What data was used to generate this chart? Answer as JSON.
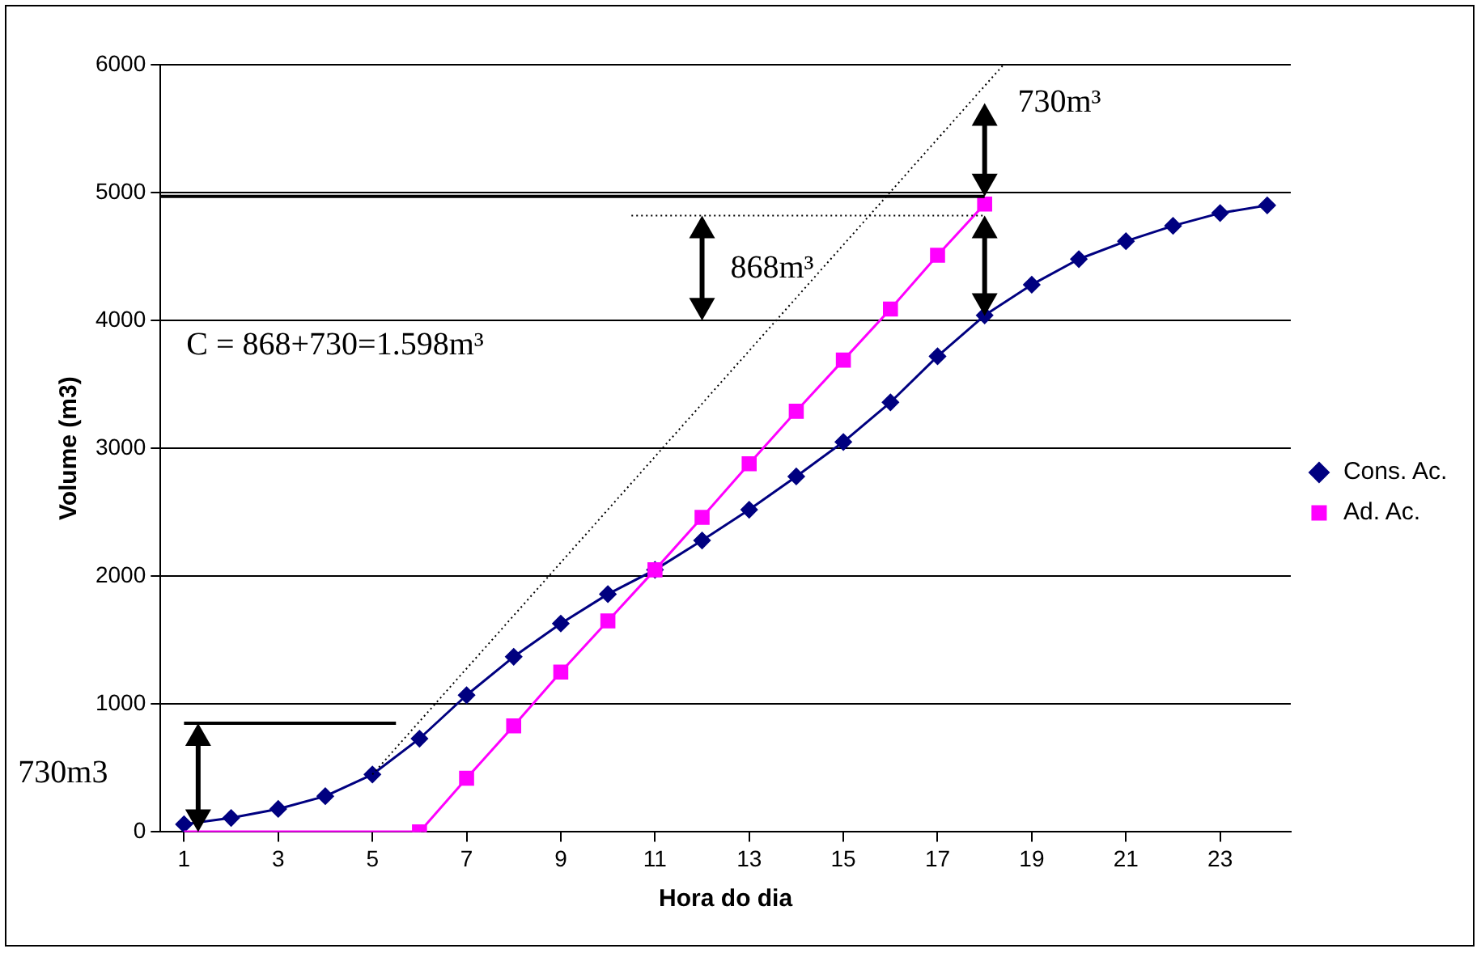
{
  "chart_data": {
    "type": "line",
    "xlabel": "Hora do dia",
    "ylabel": "Volume (m3)",
    "xlim": [
      0.5,
      24.5
    ],
    "xticks": [
      1,
      3,
      5,
      7,
      9,
      11,
      13,
      15,
      17,
      19,
      21,
      23
    ],
    "ylim": [
      0,
      6000
    ],
    "yticks": [
      0,
      1000,
      2000,
      3000,
      4000,
      5000,
      6000
    ],
    "grid": "y",
    "legend": "right",
    "series": [
      {
        "name": "Cons. Ac.",
        "color": "#000080",
        "marker": "diamond",
        "x": [
          1,
          2,
          3,
          4,
          5,
          6,
          7,
          8,
          9,
          10,
          11,
          12,
          13,
          14,
          15,
          16,
          17,
          18,
          19,
          20,
          21,
          22,
          23,
          24
        ],
        "values": [
          60,
          110,
          180,
          280,
          450,
          730,
          1070,
          1370,
          1630,
          1860,
          2050,
          2280,
          2520,
          2780,
          3050,
          3360,
          3720,
          4040,
          4280,
          4480,
          4620,
          4740,
          4840,
          4900
        ]
      },
      {
        "name": "Ad. Ac.",
        "color": "#ff00ff",
        "marker": "square",
        "x": [
          6,
          7,
          8,
          9,
          10,
          11,
          12,
          13,
          14,
          15,
          16,
          17,
          18
        ],
        "values": [
          0,
          420,
          830,
          1250,
          1650,
          2050,
          2460,
          2880,
          3290,
          3690,
          4090,
          4510,
          4910
        ]
      },
      {
        "type": "line",
        "color": "#000000",
        "marker": "none",
        "line_style": "dotted",
        "x": [
          5,
          18.4
        ],
        "values": [
          450,
          6000
        ]
      },
      {
        "type": "line",
        "color": "#000000",
        "marker": "none",
        "line_style": "solid",
        "x": [
          0.5,
          18
        ],
        "values": [
          4970,
          4970
        ]
      },
      {
        "type": "line",
        "color": "#000000",
        "marker": "none",
        "line_style": "dotted",
        "x": [
          10.5,
          18
        ],
        "values": [
          4820,
          4820
        ]
      },
      {
        "type": "line",
        "color": "#000000",
        "marker": "none",
        "line_style": "solid",
        "x": [
          1,
          5.5
        ],
        "values": [
          850,
          850
        ]
      },
      {
        "type": "line",
        "color": "#ff00ff",
        "marker": "none",
        "line_style": "solid",
        "x": [
          1,
          6
        ],
        "values": [
          0,
          0
        ]
      }
    ],
    "annotations": [
      "730m3",
      "C = 868+730=1.598m³",
      "868m³",
      "730m³"
    ]
  }
}
